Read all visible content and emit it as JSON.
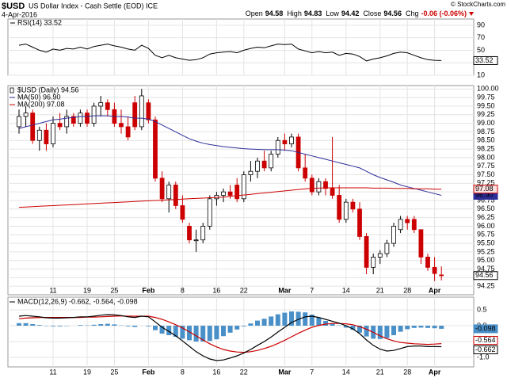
{
  "header": {
    "symbol": "$USD",
    "title": "US Dollar Index - Cash Settle (EOD) ICE",
    "date": "4-Apr-2016",
    "credit": "© StockCharts.com",
    "quote": [
      {
        "label": "Open",
        "value": "94.58"
      },
      {
        "label": "High",
        "value": "94.83"
      },
      {
        "label": "Low",
        "value": "94.42"
      },
      {
        "label": "Close",
        "value": "94.56"
      },
      {
        "label": "Chg",
        "value": "-0.06 (-0.06%)"
      }
    ]
  },
  "chart_data": [
    {
      "type": "line",
      "series": [
        {
          "name": "RSI(14) 33.52",
          "color": "#000000",
          "last_label": "33.52",
          "values": [
            58,
            60,
            55,
            50,
            47,
            52,
            50,
            53,
            52,
            55,
            52,
            56,
            58,
            60,
            57,
            55,
            52,
            50,
            58,
            53,
            42,
            38,
            42,
            38,
            36,
            34,
            35,
            38,
            44,
            46,
            47,
            48,
            46,
            50,
            53,
            55,
            54,
            57,
            60,
            59,
            60,
            52,
            49,
            46,
            48,
            46,
            47,
            42,
            45,
            44,
            40,
            33,
            36,
            38,
            41,
            45,
            47,
            46,
            42,
            38,
            35,
            34,
            33.52
          ]
        }
      ],
      "ylim": [
        10,
        100
      ],
      "yticks": [
        10,
        30,
        50,
        70,
        90
      ],
      "grid": true
    },
    {
      "type": "candlestick",
      "name": "$USD (Daily) 94.56",
      "last_label": "94.56",
      "up_color": "#ffffff",
      "down_color": "#cc0000",
      "categories": [
        null,
        null,
        null,
        null,
        null,
        "11",
        null,
        null,
        null,
        null,
        "19",
        null,
        null,
        null,
        "25",
        null,
        null,
        null,
        null,
        "Feb",
        null,
        null,
        null,
        null,
        "8",
        null,
        null,
        null,
        null,
        "16",
        null,
        null,
        null,
        "22",
        null,
        null,
        null,
        null,
        null,
        "Mar",
        null,
        null,
        null,
        "7",
        null,
        null,
        null,
        null,
        "14",
        null,
        null,
        null,
        null,
        "21",
        null,
        null,
        null,
        "28",
        null,
        null,
        null,
        "Apr",
        null
      ],
      "open": [
        98.9,
        99.2,
        99.3,
        98.5,
        98.8,
        98.4,
        99.0,
        98.9,
        99.2,
        99.0,
        99.3,
        99.0,
        99.5,
        99.6,
        99.4,
        99.0,
        98.9,
        99.6,
        98.9,
        99.6,
        99.1,
        97.4,
        96.8,
        97.2,
        96.6,
        96.0,
        95.6,
        95.6,
        96.0,
        96.8,
        96.9,
        97.0,
        97.2,
        96.8,
        97.5,
        97.6,
        97.9,
        97.7,
        98.1,
        98.5,
        98.4,
        98.6,
        97.7,
        97.4,
        97.0,
        97.3,
        97.1,
        96.9,
        96.2,
        96.7,
        96.5,
        95.7,
        94.8,
        95.1,
        95.2,
        95.5,
        95.9,
        96.2,
        96.2,
        95.9,
        95.1,
        94.8,
        94.58
      ],
      "high": [
        99.4,
        99.5,
        99.4,
        98.9,
        99.0,
        99.2,
        99.3,
        99.4,
        99.3,
        99.4,
        99.4,
        99.6,
        99.8,
        99.7,
        99.6,
        99.4,
        99.2,
        99.8,
        100.0,
        99.7,
        99.2,
        97.6,
        97.3,
        97.3,
        96.9,
        96.1,
        95.9,
        96.1,
        96.9,
        97.0,
        97.1,
        97.2,
        97.4,
        97.6,
        97.9,
        98.0,
        98.2,
        98.2,
        98.6,
        98.7,
        98.7,
        98.7,
        98.1,
        97.5,
        97.4,
        97.4,
        98.6,
        97.2,
        96.8,
        96.8,
        96.7,
        95.8,
        95.2,
        95.3,
        95.6,
        96.1,
        96.3,
        96.3,
        96.3,
        95.9,
        95.2,
        95.1,
        94.83
      ],
      "low": [
        98.7,
        98.9,
        98.4,
        98.2,
        98.2,
        98.3,
        98.8,
        98.7,
        98.9,
        98.9,
        98.9,
        98.9,
        99.2,
        99.2,
        98.9,
        98.7,
        98.5,
        98.8,
        98.8,
        99.0,
        97.3,
        96.7,
        96.4,
        96.5,
        96.1,
        95.5,
        95.25,
        95.5,
        95.9,
        96.6,
        96.7,
        96.8,
        96.7,
        96.7,
        97.3,
        97.4,
        97.6,
        97.6,
        98.0,
        98.2,
        98.3,
        97.6,
        97.3,
        96.9,
        96.9,
        96.9,
        96.8,
        96.1,
        96.1,
        96.4,
        95.6,
        94.6,
        94.6,
        94.9,
        95.1,
        95.4,
        95.8,
        95.9,
        95.8,
        94.9,
        94.7,
        94.4,
        94.42
      ],
      "close": [
        99.2,
        99.3,
        98.5,
        98.8,
        98.4,
        99.0,
        98.9,
        99.2,
        99.0,
        99.3,
        99.0,
        99.5,
        99.6,
        99.4,
        99.0,
        98.9,
        98.6,
        98.9,
        99.8,
        99.1,
        97.4,
        96.8,
        97.2,
        96.6,
        96.2,
        95.6,
        95.6,
        96.0,
        96.8,
        96.9,
        97.0,
        96.9,
        96.8,
        97.5,
        97.6,
        97.9,
        97.7,
        98.1,
        98.5,
        98.4,
        98.6,
        97.7,
        97.4,
        97.0,
        97.3,
        97.1,
        96.9,
        96.2,
        96.7,
        96.5,
        95.7,
        94.8,
        95.1,
        95.2,
        95.5,
        96.0,
        96.2,
        96.1,
        95.9,
        95.1,
        94.8,
        94.62,
        94.56
      ],
      "series": [
        {
          "name": "MA(50) 96.90",
          "color": "#2e2e9a",
          "last_label": "96.90",
          "values": [
            98.85,
            98.9,
            98.95,
            99.0,
            99.05,
            99.1,
            99.12,
            99.15,
            99.17,
            99.2,
            99.2,
            99.22,
            99.22,
            99.22,
            99.2,
            99.2,
            99.18,
            99.15,
            99.15,
            99.12,
            99.05,
            98.95,
            98.85,
            98.75,
            98.65,
            98.55,
            98.48,
            98.42,
            98.38,
            98.35,
            98.32,
            98.3,
            98.28,
            98.26,
            98.25,
            98.24,
            98.23,
            98.23,
            98.23,
            98.22,
            98.2,
            98.15,
            98.1,
            98.05,
            98.0,
            97.95,
            97.9,
            97.85,
            97.8,
            97.75,
            97.7,
            97.6,
            97.5,
            97.42,
            97.35,
            97.28,
            97.2,
            97.15,
            97.1,
            97.05,
            97.0,
            96.95,
            96.9
          ]
        },
        {
          "name": "MA(200) 97.08",
          "color": "#cc0000",
          "last_label": "97.08",
          "values": [
            96.55,
            96.56,
            96.57,
            96.58,
            96.59,
            96.6,
            96.61,
            96.62,
            96.63,
            96.64,
            96.65,
            96.66,
            96.67,
            96.68,
            96.69,
            96.7,
            96.71,
            96.72,
            96.73,
            96.74,
            96.75,
            96.76,
            96.77,
            96.78,
            96.79,
            96.8,
            96.81,
            96.82,
            96.83,
            96.84,
            96.85,
            96.87,
            96.89,
            96.91,
            96.93,
            96.95,
            96.97,
            96.99,
            97.01,
            97.03,
            97.05,
            97.07,
            97.09,
            97.1,
            97.11,
            97.12,
            97.12,
            97.12,
            97.12,
            97.12,
            97.12,
            97.12,
            97.11,
            97.11,
            97.11,
            97.1,
            97.1,
            97.1,
            97.09,
            97.09,
            97.09,
            97.08,
            97.08
          ]
        }
      ],
      "ylim": [
        94.0,
        100.1
      ],
      "yticks": [
        94.25,
        {
          "value": 94.5,
          "label": "94.50"
        },
        94.75,
        {
          "value": 95,
          "label": "95.00"
        },
        95.25,
        {
          "value": 95.5,
          "label": "95.50"
        },
        95.75,
        {
          "value": 96,
          "label": "96.00"
        },
        96.25,
        {
          "value": 96.5,
          "label": "96.50"
        },
        96.75,
        {
          "value": 97,
          "label": "97.00"
        },
        97.25,
        {
          "value": 97.5,
          "label": "97.50"
        },
        97.75,
        {
          "value": 98,
          "label": "98.00"
        },
        98.25,
        {
          "value": 98.5,
          "label": "98.50"
        },
        98.75,
        {
          "value": 99,
          "label": "99.00"
        },
        99.25,
        {
          "value": 99.5,
          "label": "99.50"
        },
        99.75,
        {
          "value": 100,
          "label": "100.00"
        }
      ],
      "grid": true
    },
    {
      "type": "macd",
      "title": "MACD(12,26,9) -0.662, -0.564, -0.098",
      "categories": [
        null,
        null,
        null,
        null,
        null,
        "11",
        null,
        null,
        null,
        null,
        "19",
        null,
        null,
        null,
        "25",
        null,
        null,
        null,
        null,
        "Feb",
        null,
        null,
        null,
        null,
        "8",
        null,
        null,
        null,
        null,
        "16",
        null,
        null,
        null,
        "22",
        null,
        null,
        null,
        null,
        null,
        "Mar",
        null,
        null,
        null,
        "7",
        null,
        null,
        null,
        null,
        "14",
        null,
        null,
        null,
        null,
        "21",
        null,
        null,
        null,
        "28",
        null,
        null,
        null,
        "Apr",
        null
      ],
      "series": [
        {
          "type": "bar",
          "color": "#4a90c8",
          "last_label": "-0.098",
          "values": [
            0.08,
            0.08,
            0.05,
            0.02,
            -0.01,
            -0.02,
            -0.02,
            -0.01,
            0.0,
            0.02,
            0.01,
            0.03,
            0.05,
            0.06,
            0.04,
            0.01,
            -0.02,
            -0.04,
            0.0,
            -0.02,
            -0.14,
            -0.25,
            -0.3,
            -0.35,
            -0.41,
            -0.46,
            -0.5,
            -0.5,
            -0.48,
            -0.43,
            -0.33,
            -0.22,
            -0.12,
            -0.02,
            0.07,
            0.16,
            0.22,
            0.29,
            0.36,
            0.41,
            0.45,
            0.44,
            0.42,
            0.35,
            0.25,
            0.15,
            0.07,
            0.01,
            -0.06,
            -0.13,
            -0.22,
            -0.34,
            -0.41,
            -0.42,
            -0.39,
            -0.3,
            -0.19,
            -0.11,
            -0.07,
            -0.06,
            -0.07,
            -0.08,
            -0.098
          ]
        },
        {
          "type": "line",
          "color": "#cc0000",
          "last_label": "-0.564",
          "values": [
            0.22,
            0.24,
            0.25,
            0.26,
            0.26,
            0.26,
            0.26,
            0.26,
            0.26,
            0.26,
            0.27,
            0.27,
            0.28,
            0.29,
            0.3,
            0.31,
            0.3,
            0.3,
            0.3,
            0.3,
            0.26,
            0.2,
            0.12,
            0.03,
            -0.07,
            -0.19,
            -0.32,
            -0.45,
            -0.57,
            -0.67,
            -0.75,
            -0.8,
            -0.83,
            -0.84,
            -0.82,
            -0.78,
            -0.72,
            -0.65,
            -0.56,
            -0.46,
            -0.35,
            -0.24,
            -0.14,
            -0.05,
            0.01,
            0.05,
            0.07,
            0.07,
            0.06,
            0.03,
            -0.03,
            -0.11,
            -0.21,
            -0.32,
            -0.41,
            -0.48,
            -0.53,
            -0.55,
            -0.57,
            -0.58,
            -0.59,
            -0.58,
            -0.564
          ]
        },
        {
          "type": "line",
          "color": "#000000",
          "last_label": "-0.662",
          "values": [
            0.3,
            0.32,
            0.3,
            0.28,
            0.25,
            0.24,
            0.24,
            0.25,
            0.26,
            0.28,
            0.28,
            0.3,
            0.33,
            0.35,
            0.34,
            0.32,
            0.28,
            0.26,
            0.3,
            0.28,
            0.12,
            -0.05,
            -0.18,
            -0.32,
            -0.48,
            -0.65,
            -0.82,
            -0.95,
            -1.05,
            -1.1,
            -1.08,
            -1.02,
            -0.95,
            -0.86,
            -0.75,
            -0.62,
            -0.5,
            -0.36,
            -0.2,
            -0.05,
            0.1,
            0.2,
            0.28,
            0.3,
            0.26,
            0.2,
            0.14,
            0.08,
            0.0,
            -0.1,
            -0.25,
            -0.45,
            -0.62,
            -0.74,
            -0.8,
            -0.78,
            -0.72,
            -0.66,
            -0.64,
            -0.64,
            -0.66,
            -0.66,
            -0.662
          ]
        }
      ],
      "ylim": [
        -1.3,
        0.9
      ],
      "yticks": [
        {
          "value": -1,
          "label": "-1.0"
        },
        -0.5,
        {
          "value": 0,
          "label": "0.0"
        },
        0.5
      ],
      "grid": true
    }
  ]
}
